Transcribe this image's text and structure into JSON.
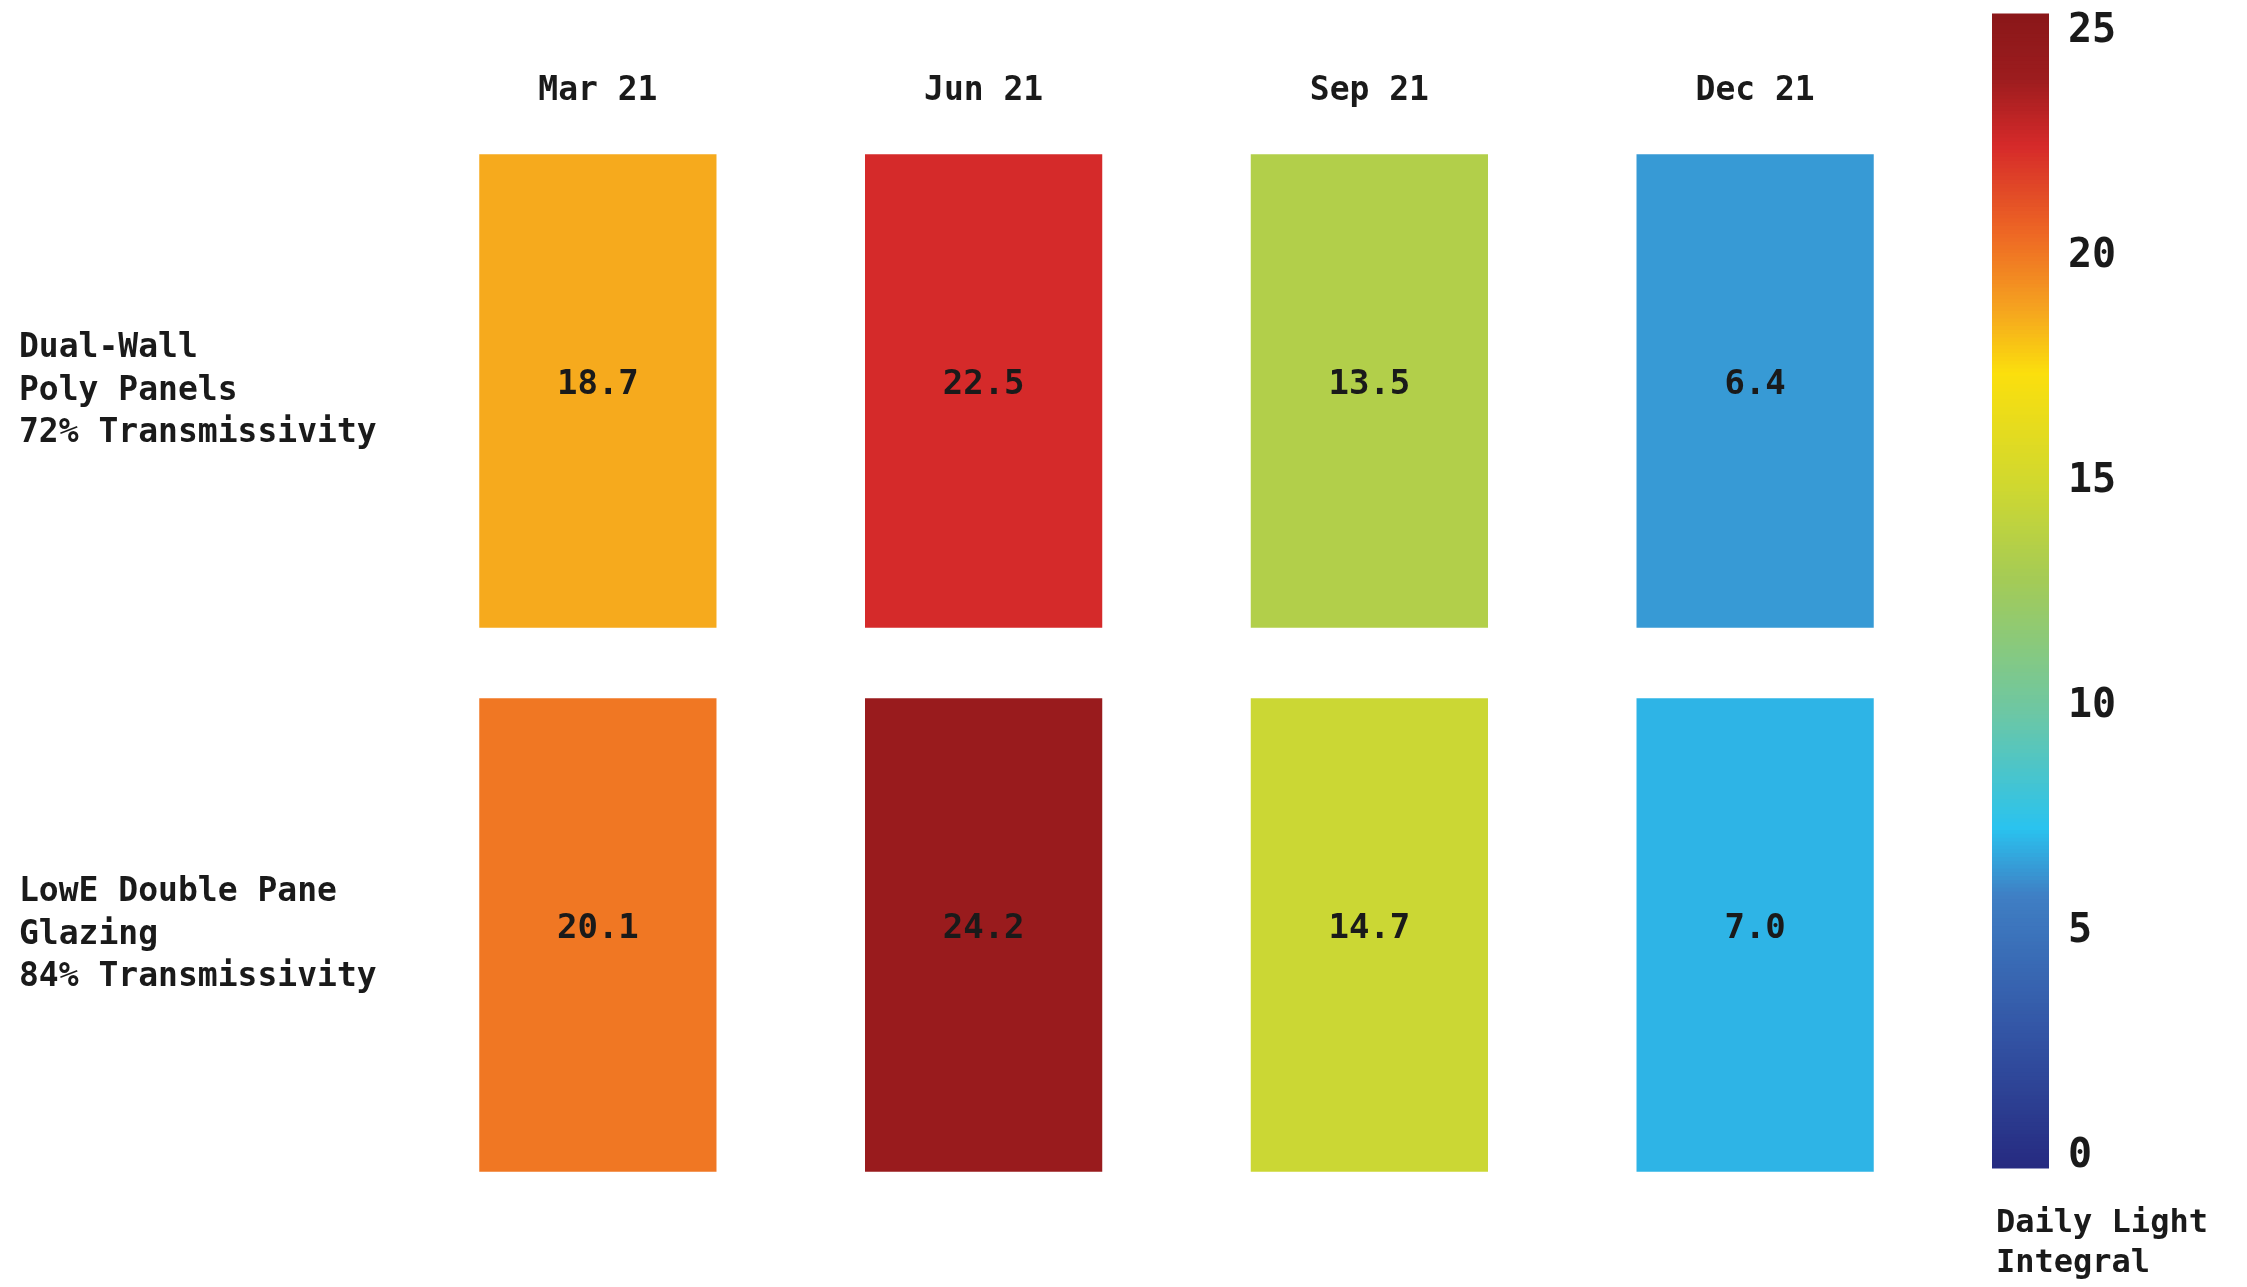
{
  "chart_data": {
    "type": "heatmap",
    "categories": [
      "Mar 21",
      "Jun 21",
      "Sep 21",
      "Dec 21"
    ],
    "y_categories": [
      "Dual-Wall\nPoly Panels\n72% Transmissivity",
      "LowE Double Pane\nGlazing\n84% Transmissivity"
    ],
    "cells": [
      [
        18.7,
        22.5,
        13.5,
        6.4
      ],
      [
        20.1,
        24.2,
        14.7,
        7.0
      ]
    ],
    "cell_labels": [
      [
        "18.7",
        "22.5",
        "13.5",
        "6.4"
      ],
      [
        "20.1",
        "24.2",
        "14.7",
        "7.0"
      ]
    ],
    "clim": [
      -0.25,
      25.4
    ],
    "cticks": [
      0,
      5,
      10,
      15,
      20,
      25
    ],
    "clabel": "Daily Light\nIntegral"
  }
}
